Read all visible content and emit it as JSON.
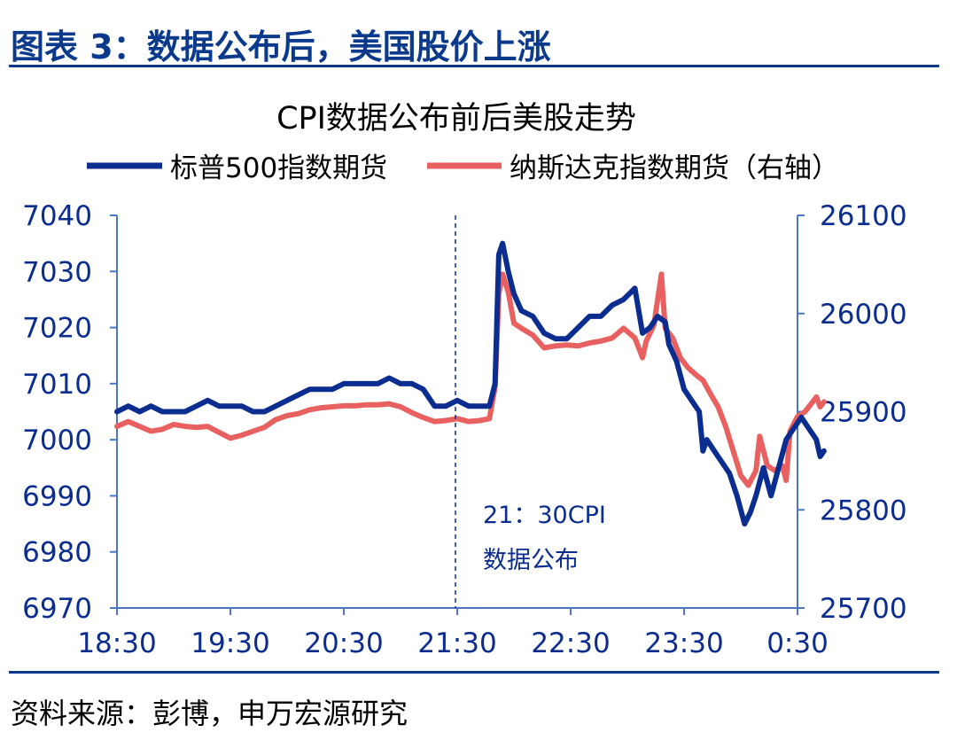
{
  "figure_title": "图表 3：数据公布后，美国股价上涨",
  "source_text": "资料来源：彭博，申万宏源研究",
  "colors": {
    "series1": "#0a2d8f",
    "series2": "#e8605f",
    "axis": "#4a76c4",
    "title_blue": "#0b3a8c"
  },
  "chart_data": {
    "type": "line",
    "title": "CPI数据公布前后美股走势",
    "x_ticks": [
      "18:30",
      "19:30",
      "20:30",
      "21:30",
      "22:30",
      "23:30",
      "0:30"
    ],
    "x_range_minutes": [
      1110,
      1470
    ],
    "y_left": {
      "ticks": [
        6970,
        6980,
        6990,
        7000,
        7010,
        7020,
        7030,
        7040
      ],
      "range": [
        6970,
        7040
      ]
    },
    "y_right": {
      "ticks": [
        25700,
        25800,
        25900,
        26000,
        26100
      ],
      "range": [
        25700,
        26100
      ]
    },
    "legend": {
      "placement": "top",
      "entries": [
        "标普500指数期货",
        "纳斯达克指数期货（右轴）"
      ]
    },
    "annotation": {
      "x": "21:30",
      "lines": [
        "21：30CPI",
        "数据公布"
      ]
    },
    "series": [
      {
        "name": "标普500指数期货",
        "axis": "left",
        "points": [
          [
            1110,
            7005
          ],
          [
            1116,
            7006
          ],
          [
            1122,
            7005
          ],
          [
            1128,
            7006
          ],
          [
            1134,
            7005
          ],
          [
            1140,
            7005
          ],
          [
            1146,
            7005
          ],
          [
            1152,
            7006
          ],
          [
            1158,
            7007
          ],
          [
            1164,
            7006
          ],
          [
            1170,
            7006
          ],
          [
            1176,
            7006
          ],
          [
            1182,
            7005
          ],
          [
            1188,
            7005
          ],
          [
            1194,
            7006
          ],
          [
            1200,
            7007
          ],
          [
            1206,
            7008
          ],
          [
            1212,
            7009
          ],
          [
            1218,
            7009
          ],
          [
            1224,
            7009
          ],
          [
            1230,
            7010
          ],
          [
            1236,
            7010
          ],
          [
            1242,
            7010
          ],
          [
            1248,
            7010
          ],
          [
            1254,
            7011
          ],
          [
            1260,
            7010
          ],
          [
            1266,
            7010
          ],
          [
            1272,
            7009
          ],
          [
            1278,
            7006
          ],
          [
            1284,
            7006
          ],
          [
            1290,
            7007
          ],
          [
            1296,
            7006
          ],
          [
            1302,
            7006
          ],
          [
            1307,
            7006
          ],
          [
            1310,
            7010
          ],
          [
            1312,
            7033
          ],
          [
            1314,
            7035
          ],
          [
            1317,
            7030
          ],
          [
            1320,
            7026
          ],
          [
            1324,
            7023
          ],
          [
            1330,
            7022
          ],
          [
            1336,
            7019
          ],
          [
            1342,
            7018
          ],
          [
            1348,
            7018
          ],
          [
            1354,
            7020
          ],
          [
            1360,
            7022
          ],
          [
            1366,
            7022
          ],
          [
            1372,
            7024
          ],
          [
            1378,
            7025
          ],
          [
            1384,
            7027
          ],
          [
            1388,
            7019
          ],
          [
            1392,
            7020
          ],
          [
            1396,
            7022
          ],
          [
            1400,
            7021
          ],
          [
            1402,
            7017
          ],
          [
            1406,
            7014
          ],
          [
            1410,
            7009
          ],
          [
            1414,
            7007
          ],
          [
            1418,
            7005
          ],
          [
            1420,
            6998
          ],
          [
            1422,
            7000
          ],
          [
            1426,
            6998
          ],
          [
            1430,
            6996
          ],
          [
            1434,
            6994
          ],
          [
            1438,
            6990
          ],
          [
            1442,
            6985
          ],
          [
            1445,
            6987
          ],
          [
            1448,
            6990
          ],
          [
            1452,
            6995
          ],
          [
            1456,
            6990
          ],
          [
            1460,
            6995
          ],
          [
            1464,
            7000
          ],
          [
            1468,
            7002
          ],
          [
            1472,
            7004
          ],
          [
            1476,
            7002
          ],
          [
            1480,
            7000
          ],
          [
            1482,
            6997
          ],
          [
            1484,
            6998
          ]
        ]
      },
      {
        "name": "纳斯达克指数期货（右轴）",
        "axis": "right",
        "points": [
          [
            1110,
            25885
          ],
          [
            1116,
            25890
          ],
          [
            1122,
            25885
          ],
          [
            1128,
            25880
          ],
          [
            1134,
            25882
          ],
          [
            1140,
            25887
          ],
          [
            1146,
            25885
          ],
          [
            1152,
            25884
          ],
          [
            1158,
            25885
          ],
          [
            1164,
            25879
          ],
          [
            1170,
            25873
          ],
          [
            1176,
            25876
          ],
          [
            1182,
            25880
          ],
          [
            1188,
            25884
          ],
          [
            1194,
            25892
          ],
          [
            1200,
            25896
          ],
          [
            1206,
            25898
          ],
          [
            1212,
            25902
          ],
          [
            1218,
            25904
          ],
          [
            1224,
            25905
          ],
          [
            1230,
            25906
          ],
          [
            1236,
            25906
          ],
          [
            1242,
            25907
          ],
          [
            1248,
            25907
          ],
          [
            1254,
            25908
          ],
          [
            1260,
            25905
          ],
          [
            1266,
            25899
          ],
          [
            1272,
            25894
          ],
          [
            1278,
            25890
          ],
          [
            1284,
            25891
          ],
          [
            1290,
            25893
          ],
          [
            1296,
            25890
          ],
          [
            1302,
            25891
          ],
          [
            1307,
            25893
          ],
          [
            1310,
            25925
          ],
          [
            1312,
            26020
          ],
          [
            1314,
            26040
          ],
          [
            1317,
            26022
          ],
          [
            1320,
            25990
          ],
          [
            1324,
            25985
          ],
          [
            1330,
            25978
          ],
          [
            1336,
            25965
          ],
          [
            1342,
            25967
          ],
          [
            1348,
            25968
          ],
          [
            1354,
            25967
          ],
          [
            1360,
            25970
          ],
          [
            1366,
            25972
          ],
          [
            1372,
            25975
          ],
          [
            1378,
            25985
          ],
          [
            1384,
            25975
          ],
          [
            1388,
            25955
          ],
          [
            1390,
            25972
          ],
          [
            1394,
            25988
          ],
          [
            1398,
            26040
          ],
          [
            1400,
            25985
          ],
          [
            1404,
            25975
          ],
          [
            1408,
            25955
          ],
          [
            1412,
            25945
          ],
          [
            1416,
            25938
          ],
          [
            1420,
            25932
          ],
          [
            1424,
            25918
          ],
          [
            1428,
            25905
          ],
          [
            1432,
            25885
          ],
          [
            1436,
            25860
          ],
          [
            1440,
            25835
          ],
          [
            1444,
            25825
          ],
          [
            1448,
            25840
          ],
          [
            1450,
            25875
          ],
          [
            1454,
            25845
          ],
          [
            1458,
            25840
          ],
          [
            1462,
            25845
          ],
          [
            1464,
            25830
          ],
          [
            1466,
            25880
          ],
          [
            1470,
            25895
          ],
          [
            1474,
            25900
          ],
          [
            1478,
            25910
          ],
          [
            1480,
            25915
          ],
          [
            1482,
            25905
          ],
          [
            1484,
            25910
          ]
        ]
      }
    ]
  }
}
